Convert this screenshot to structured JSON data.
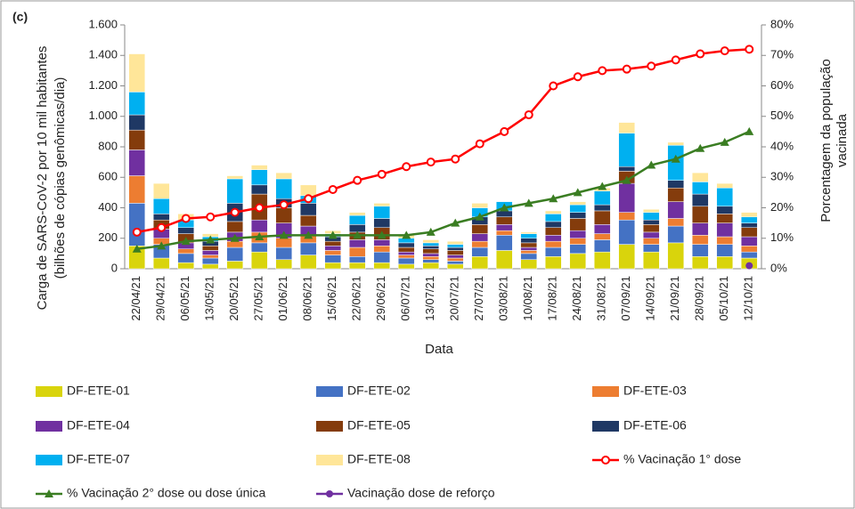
{
  "chart_data": {
    "type": "bar",
    "stacked": true,
    "annotation": "(c)",
    "ylabel": [
      "Carga de SARS-CoV-2 por 10 mil habitantes",
      "(bilhões de cópias genômicas/dia)"
    ],
    "y2label": [
      "Porcentagem da população",
      "vacinada"
    ],
    "xlabel": "Data",
    "categories": [
      "22/04/21",
      "29/04/21",
      "06/05/21",
      "13/05/21",
      "20/05/21",
      "27/05/21",
      "01/06/21",
      "08/06/21",
      "15/06/21",
      "22/06/21",
      "29/06/21",
      "06/07/21",
      "13/07/21",
      "20/07/21",
      "27/07/21",
      "03/08/21",
      "10/08/21",
      "17/08/21",
      "24/08/21",
      "31/08/21",
      "07/09/21",
      "14/09/21",
      "21/09/21",
      "28/09/21",
      "05/10/21",
      "12/10/21"
    ],
    "ylim": [
      0,
      1600
    ],
    "yticks": [
      0,
      200,
      400,
      600,
      800,
      {
        "value": 1000,
        "label": "1.000"
      },
      {
        "value": 1200,
        "label": "1.200"
      },
      {
        "value": 1400,
        "label": "1.400"
      },
      {
        "value": 1600,
        "label": "1.600"
      }
    ],
    "y2lim": [
      0,
      80
    ],
    "y2ticks": [
      {
        "value": 0,
        "label": "0%"
      },
      {
        "value": 10,
        "label": "10%"
      },
      {
        "value": 20,
        "label": "20%"
      },
      {
        "value": 30,
        "label": "30%"
      },
      {
        "value": 40,
        "label": "40%"
      },
      {
        "value": 50,
        "label": "50%"
      },
      {
        "value": 60,
        "label": "60%"
      },
      {
        "value": 70,
        "label": "70%"
      },
      {
        "value": 80,
        "label": "80%"
      }
    ],
    "series": [
      {
        "name": "DF-ETE-01",
        "type": "bar",
        "color": "#d9d40c",
        "values": [
          150,
          70,
          40,
          30,
          50,
          110,
          60,
          90,
          40,
          40,
          40,
          30,
          40,
          30,
          80,
          120,
          60,
          80,
          100,
          110,
          160,
          110,
          170,
          80,
          80,
          70
        ]
      },
      {
        "name": "DF-ETE-02",
        "type": "bar",
        "color": "#4472c4",
        "values": [
          280,
          90,
          60,
          40,
          90,
          60,
          80,
          80,
          50,
          40,
          70,
          40,
          20,
          20,
          60,
          100,
          40,
          60,
          60,
          80,
          160,
          50,
          110,
          80,
          80,
          40
        ]
      },
      {
        "name": "DF-ETE-03",
        "type": "bar",
        "color": "#ed7d31",
        "values": [
          180,
          40,
          30,
          20,
          40,
          70,
          60,
          50,
          30,
          60,
          40,
          20,
          20,
          20,
          40,
          30,
          20,
          40,
          40,
          40,
          50,
          40,
          50,
          60,
          50,
          40
        ]
      },
      {
        "name": "DF-ETE-04",
        "type": "bar",
        "color": "#7030a0",
        "values": [
          170,
          60,
          40,
          30,
          60,
          80,
          100,
          60,
          30,
          50,
          40,
          20,
          20,
          20,
          50,
          40,
          20,
          40,
          50,
          60,
          190,
          40,
          110,
          80,
          90,
          60
        ]
      },
      {
        "name": "DF-ETE-05",
        "type": "bar",
        "color": "#843c0c",
        "values": [
          130,
          60,
          60,
          30,
          70,
          170,
          100,
          70,
          30,
          50,
          80,
          30,
          30,
          30,
          60,
          50,
          30,
          50,
          80,
          90,
          80,
          50,
          90,
          110,
          60,
          60
        ]
      },
      {
        "name": "DF-ETE-06",
        "type": "bar",
        "color": "#1f3864",
        "values": [
          100,
          40,
          40,
          30,
          120,
          60,
          60,
          80,
          30,
          50,
          60,
          30,
          20,
          20,
          50,
          40,
          30,
          40,
          40,
          40,
          30,
          30,
          50,
          80,
          50,
          30
        ]
      },
      {
        "name": "DF-ETE-07",
        "type": "bar",
        "color": "#00b0f0",
        "values": [
          150,
          100,
          50,
          30,
          160,
          100,
          130,
          50,
          20,
          60,
          80,
          30,
          20,
          20,
          60,
          60,
          30,
          50,
          50,
          90,
          220,
          50,
          230,
          80,
          120,
          40
        ]
      },
      {
        "name": "DF-ETE-08",
        "type": "bar",
        "color": "#ffe699",
        "values": [
          250,
          100,
          40,
          20,
          20,
          30,
          40,
          70,
          20,
          20,
          20,
          20,
          20,
          20,
          30,
          0,
          10,
          20,
          20,
          20,
          70,
          20,
          20,
          60,
          30,
          30
        ]
      },
      {
        "name": "% Vacinação 1° dose",
        "type": "line",
        "axis": "y2",
        "color": "#ff0000",
        "marker": "circle",
        "values": [
          12,
          13.5,
          16.5,
          17,
          18.5,
          20,
          21,
          23,
          26,
          29,
          31,
          33.5,
          35,
          36,
          41,
          45,
          50.5,
          60,
          63,
          65,
          65.5,
          66.5,
          68.5,
          70.5,
          71.5,
          72
        ]
      },
      {
        "name": "% Vacinação 2° dose ou dose única",
        "type": "line",
        "axis": "y2",
        "color": "#3a7d22",
        "marker": "triangle",
        "values": [
          6.5,
          7.5,
          9,
          9.5,
          10,
          10.5,
          11,
          11,
          11,
          11,
          11,
          11,
          12,
          15,
          17,
          20,
          21.5,
          23,
          25,
          27,
          29,
          34,
          36,
          39.5,
          41.5,
          45
        ]
      },
      {
        "name": "Vacinação dose de reforço",
        "type": "line",
        "axis": "y2",
        "color": "#7030a0",
        "marker": "dot",
        "values": [
          null,
          null,
          null,
          null,
          null,
          null,
          null,
          null,
          null,
          null,
          null,
          null,
          null,
          null,
          null,
          null,
          null,
          null,
          null,
          null,
          null,
          null,
          null,
          null,
          null,
          1
        ]
      }
    ]
  }
}
